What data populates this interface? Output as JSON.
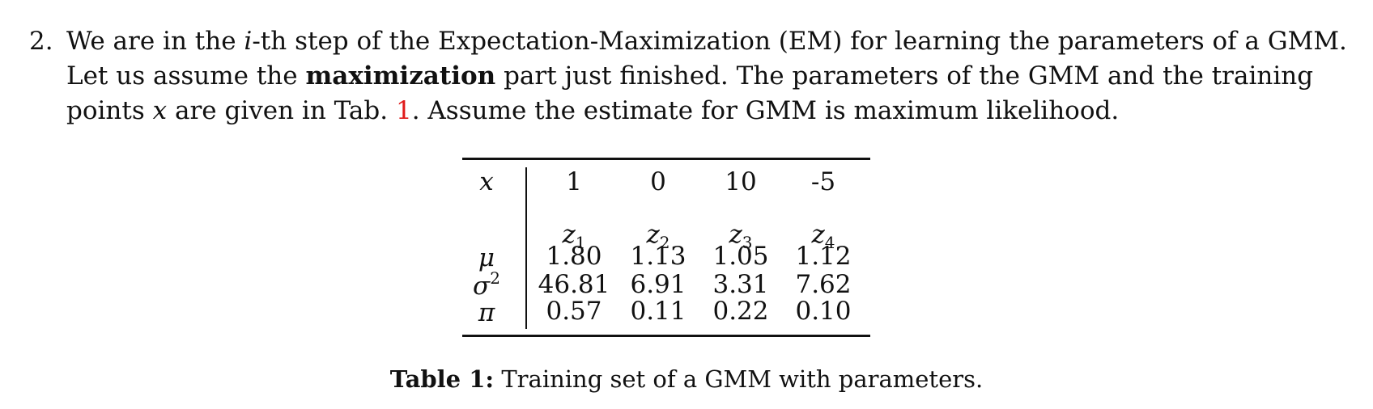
{
  "problem": {
    "number": "2.",
    "line1": {
      "a": "We are in the",
      "i": "i",
      "b": "-th step of the Expectation-Maximization (EM) for learning the parameters of a GMM."
    },
    "line2": {
      "a": "Let us assume the",
      "bold": "maximization",
      "b": "part just finished.  The parameters of the GMM and the training"
    },
    "line3": {
      "a": "points",
      "x": "x",
      "b": "are given in Tab.",
      "ref": "1",
      "c": ". Assume the estimate for GMM is maximum likelihood."
    }
  },
  "table": {
    "x_label": "x",
    "x_values": [
      "1",
      "0",
      "10",
      "-5"
    ],
    "components": [
      {
        "base": "z",
        "sub": "1"
      },
      {
        "base": "z",
        "sub": "2"
      },
      {
        "base": "z",
        "sub": "3"
      },
      {
        "base": "z",
        "sub": "4"
      }
    ],
    "rows": [
      {
        "label": "μ",
        "values": [
          "1.80",
          "1.13",
          "1.05",
          "1.12"
        ]
      },
      {
        "label": "σ",
        "sup": "2",
        "values": [
          "46.81",
          "6.91",
          "3.31",
          "7.62"
        ]
      },
      {
        "label": "π",
        "values": [
          "0.57",
          "0.11",
          "0.22",
          "0.10"
        ]
      }
    ]
  },
  "caption": {
    "label": "Table 1:",
    "text": "Training set of a GMM with parameters."
  }
}
